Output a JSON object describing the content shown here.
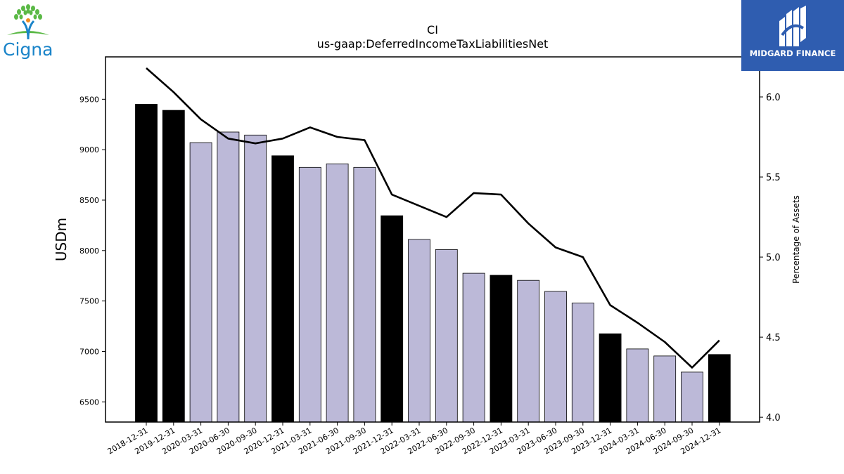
{
  "logos": {
    "left_text": "Cigna",
    "right_text": "MIDGARD FINANCE"
  },
  "chart_data": {
    "type": "bar",
    "title": "CI",
    "subtitle": "us-gaap:DeferredIncomeTaxLiabilitiesNet",
    "ylabel": "USDm",
    "y2label": "Percentage of Assets",
    "ylim": [
      6300,
      9920
    ],
    "y2lim": [
      3.97,
      6.25
    ],
    "yticks": [
      6500,
      7000,
      7500,
      8000,
      8500,
      9000,
      9500
    ],
    "y2ticks": [
      4.0,
      4.5,
      5.0,
      5.5,
      6.0
    ],
    "categories": [
      "2018-12-31",
      "2019-12-31",
      "2020-03-31",
      "2020-06-30",
      "2020-09-30",
      "2020-12-31",
      "2021-03-31",
      "2021-06-30",
      "2021-09-30",
      "2021-12-31",
      "2022-03-31",
      "2022-06-30",
      "2022-09-30",
      "2022-12-31",
      "2023-03-31",
      "2023-06-30",
      "2023-09-30",
      "2023-12-31",
      "2024-03-31",
      "2024-06-30",
      "2024-09-30",
      "2024-12-31"
    ],
    "values": [
      9450,
      9390,
      9070,
      9175,
      9145,
      8940,
      8825,
      8860,
      8825,
      8345,
      8110,
      8010,
      7775,
      7755,
      7705,
      7595,
      7480,
      7175,
      7025,
      6955,
      6795,
      6970
    ],
    "bar_colors": [
      "#000000",
      "#000000",
      "#bcb9d8",
      "#bcb9d8",
      "#bcb9d8",
      "#000000",
      "#bcb9d8",
      "#bcb9d8",
      "#bcb9d8",
      "#000000",
      "#bcb9d8",
      "#bcb9d8",
      "#bcb9d8",
      "#000000",
      "#bcb9d8",
      "#bcb9d8",
      "#bcb9d8",
      "#000000",
      "#bcb9d8",
      "#bcb9d8",
      "#bcb9d8",
      "#000000"
    ],
    "line_values": [
      6.18,
      6.03,
      5.86,
      5.74,
      5.71,
      5.74,
      5.81,
      5.75,
      5.73,
      5.39,
      5.32,
      5.25,
      5.4,
      5.39,
      5.21,
      5.06,
      5.0,
      4.7,
      4.59,
      4.47,
      4.31,
      4.48
    ],
    "line_color": "#000000",
    "grid": false
  }
}
